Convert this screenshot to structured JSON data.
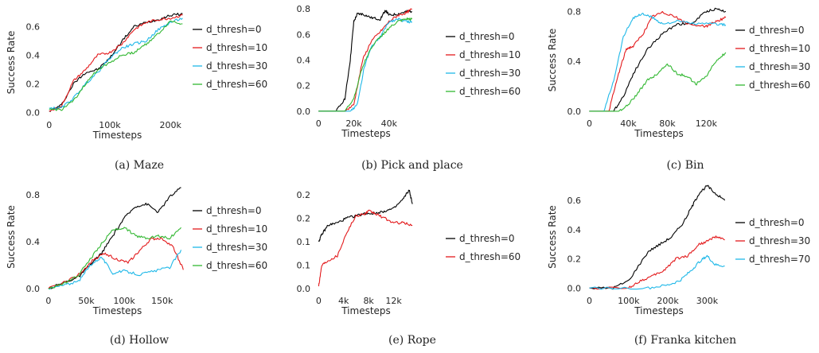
{
  "chart_data": [
    {
      "type": "line",
      "caption": "(a) Maze",
      "xlabel": "Timesteps",
      "ylabel": "Success Rate",
      "xlim": [
        -5000,
        230000
      ],
      "ylim": [
        -0.02,
        0.72
      ],
      "xticks": [
        0,
        100000,
        200000
      ],
      "xtick_labels": [
        "0",
        "100k",
        "200k"
      ],
      "yticks": [
        0.0,
        0.2,
        0.4,
        0.6
      ],
      "ytick_labels": [
        "0.0",
        "0.2",
        "0.4",
        "0.6"
      ],
      "grid": false,
      "legend_position": "right",
      "series": [
        {
          "name": "d_thresh=0",
          "color": "#000000",
          "x": [
            0,
            20000,
            40000,
            60000,
            80000,
            100000,
            120000,
            140000,
            160000,
            180000,
            200000,
            220000
          ],
          "y": [
            0.01,
            0.05,
            0.2,
            0.28,
            0.3,
            0.38,
            0.5,
            0.6,
            0.63,
            0.65,
            0.68,
            0.69
          ]
        },
        {
          "name": "d_thresh=10",
          "color": "#e31a1c",
          "x": [
            0,
            20000,
            40000,
            60000,
            80000,
            100000,
            120000,
            140000,
            160000,
            180000,
            200000,
            220000
          ],
          "y": [
            0.01,
            0.04,
            0.22,
            0.3,
            0.4,
            0.42,
            0.48,
            0.58,
            0.63,
            0.65,
            0.66,
            0.68
          ]
        },
        {
          "name": "d_thresh=30",
          "color": "#1fb8e8",
          "x": [
            0,
            20000,
            40000,
            60000,
            80000,
            100000,
            120000,
            140000,
            160000,
            180000,
            200000,
            220000
          ],
          "y": [
            0.03,
            0.03,
            0.1,
            0.2,
            0.28,
            0.38,
            0.45,
            0.48,
            0.5,
            0.58,
            0.63,
            0.66
          ]
        },
        {
          "name": "d_thresh=60",
          "color": "#33b833",
          "x": [
            0,
            20000,
            40000,
            60000,
            80000,
            100000,
            120000,
            140000,
            160000,
            180000,
            200000,
            220000
          ],
          "y": [
            0.02,
            0.02,
            0.08,
            0.2,
            0.3,
            0.35,
            0.4,
            0.42,
            0.48,
            0.55,
            0.64,
            0.62
          ]
        }
      ]
    },
    {
      "type": "line",
      "caption": "(b) Pick and place",
      "xlabel": "Timesteps",
      "ylabel": "",
      "xlim": [
        -1000,
        55000
      ],
      "ylim": [
        -0.02,
        0.82
      ],
      "xticks": [
        0,
        20000,
        40000
      ],
      "xtick_labels": [
        "0",
        "20k",
        "40k"
      ],
      "yticks": [
        0.0,
        0.2,
        0.4,
        0.6,
        0.8
      ],
      "ytick_labels": [
        "0.0",
        "0.2",
        "0.4",
        "0.6",
        "0.8"
      ],
      "grid": false,
      "legend_position": "right",
      "series": [
        {
          "name": "d_thresh=0",
          "color": "#000000",
          "x": [
            0,
            10000,
            15000,
            18000,
            20000,
            22000,
            25000,
            30000,
            35000,
            38000,
            40000,
            45000,
            50000,
            53000
          ],
          "y": [
            0.0,
            0.0,
            0.1,
            0.4,
            0.7,
            0.76,
            0.76,
            0.73,
            0.72,
            0.79,
            0.75,
            0.76,
            0.78,
            0.78
          ]
        },
        {
          "name": "d_thresh=10",
          "color": "#e31a1c",
          "x": [
            0,
            15000,
            20000,
            25000,
            30000,
            35000,
            40000,
            45000,
            50000,
            53000
          ],
          "y": [
            0.0,
            0.0,
            0.05,
            0.4,
            0.55,
            0.62,
            0.7,
            0.75,
            0.77,
            0.8
          ]
        },
        {
          "name": "d_thresh=30",
          "color": "#1fb8e8",
          "x": [
            0,
            18000,
            22000,
            26000,
            30000,
            35000,
            40000,
            45000,
            50000,
            53000
          ],
          "y": [
            0.0,
            0.0,
            0.05,
            0.35,
            0.5,
            0.58,
            0.7,
            0.72,
            0.7,
            0.7
          ]
        },
        {
          "name": "d_thresh=60",
          "color": "#33b833",
          "x": [
            0,
            15000,
            20000,
            25000,
            30000,
            35000,
            40000,
            45000,
            50000,
            53000
          ],
          "y": [
            0.0,
            0.0,
            0.1,
            0.35,
            0.5,
            0.58,
            0.65,
            0.7,
            0.72,
            0.72
          ]
        }
      ]
    },
    {
      "type": "line",
      "caption": "(c) Bin",
      "xlabel": "Timesteps",
      "ylabel": "Success Rate",
      "xlim": [
        -2000,
        145000
      ],
      "ylim": [
        -0.02,
        0.84
      ],
      "xticks": [
        0,
        40000,
        80000,
        120000
      ],
      "xtick_labels": [
        "0",
        "40k",
        "80k",
        "120k"
      ],
      "yticks": [
        0.0,
        0.4,
        0.8
      ],
      "ytick_labels": [
        "0.0",
        "0.4",
        "0.8"
      ],
      "grid": false,
      "legend_position": "right",
      "series": [
        {
          "name": "d_thresh=0",
          "color": "#000000",
          "x": [
            0,
            25000,
            35000,
            45000,
            60000,
            75000,
            90000,
            105000,
            120000,
            130000,
            140000
          ],
          "y": [
            0.0,
            0.0,
            0.12,
            0.3,
            0.5,
            0.62,
            0.7,
            0.7,
            0.8,
            0.82,
            0.8
          ]
        },
        {
          "name": "d_thresh=10",
          "color": "#e31a1c",
          "x": [
            0,
            20000,
            30000,
            38000,
            45000,
            55000,
            65000,
            75000,
            85000,
            100000,
            120000,
            130000,
            140000
          ],
          "y": [
            0.0,
            0.0,
            0.3,
            0.5,
            0.52,
            0.62,
            0.76,
            0.79,
            0.77,
            0.7,
            0.68,
            0.72,
            0.75
          ]
        },
        {
          "name": "d_thresh=30",
          "color": "#1fb8e8",
          "x": [
            0,
            15000,
            25000,
            35000,
            45000,
            55000,
            65000,
            75000,
            90000,
            110000,
            130000,
            140000
          ],
          "y": [
            0.0,
            0.0,
            0.25,
            0.6,
            0.75,
            0.78,
            0.75,
            0.7,
            0.72,
            0.7,
            0.7,
            0.69
          ]
        },
        {
          "name": "d_thresh=60",
          "color": "#33b833",
          "x": [
            0,
            30000,
            40000,
            50000,
            60000,
            70000,
            80000,
            90000,
            100000,
            110000,
            120000,
            130000,
            140000
          ],
          "y": [
            0.0,
            0.0,
            0.05,
            0.15,
            0.25,
            0.3,
            0.38,
            0.3,
            0.28,
            0.22,
            0.28,
            0.4,
            0.47
          ]
        }
      ]
    },
    {
      "type": "line",
      "caption": "(d) Hollow",
      "xlabel": "Timesteps",
      "ylabel": "Success Rate",
      "xlim": [
        -3000,
        185000
      ],
      "ylim": [
        -0.02,
        0.9
      ],
      "xticks": [
        0,
        50000,
        100000,
        150000
      ],
      "xtick_labels": [
        "0",
        "50k",
        "100k",
        "150k"
      ],
      "yticks": [
        0.0,
        0.4,
        0.8
      ],
      "ytick_labels": [
        "0.0",
        "0.4",
        "0.8"
      ],
      "grid": false,
      "legend_position": "right",
      "series": [
        {
          "name": "d_thresh=0",
          "color": "#000000",
          "x": [
            0,
            20000,
            40000,
            55000,
            70000,
            85000,
            100000,
            115000,
            130000,
            145000,
            160000,
            175000
          ],
          "y": [
            0.0,
            0.05,
            0.1,
            0.2,
            0.3,
            0.45,
            0.6,
            0.7,
            0.72,
            0.65,
            0.78,
            0.86
          ]
        },
        {
          "name": "d_thresh=10",
          "color": "#e31a1c",
          "x": [
            0,
            20000,
            40000,
            60000,
            75000,
            90000,
            105000,
            120000,
            135000,
            150000,
            165000,
            178000
          ],
          "y": [
            0.0,
            0.05,
            0.12,
            0.25,
            0.3,
            0.25,
            0.22,
            0.32,
            0.42,
            0.43,
            0.35,
            0.16
          ]
        },
        {
          "name": "d_thresh=30",
          "color": "#1fb8e8",
          "x": [
            0,
            20000,
            40000,
            55000,
            70000,
            85000,
            100000,
            120000,
            140000,
            160000,
            175000
          ],
          "y": [
            0.0,
            0.03,
            0.06,
            0.2,
            0.27,
            0.13,
            0.15,
            0.12,
            0.15,
            0.18,
            0.33
          ]
        },
        {
          "name": "d_thresh=60",
          "color": "#33b833",
          "x": [
            0,
            20000,
            40000,
            55000,
            70000,
            85000,
            100000,
            115000,
            130000,
            145000,
            160000,
            175000
          ],
          "y": [
            0.0,
            0.04,
            0.12,
            0.25,
            0.38,
            0.5,
            0.52,
            0.45,
            0.43,
            0.45,
            0.43,
            0.52
          ]
        }
      ]
    },
    {
      "type": "line",
      "caption": "(e) Rope",
      "xlabel": "Timesteps",
      "ylabel": "",
      "xlim": [
        -300,
        15500
      ],
      "ylim": [
        -0.005,
        0.225
      ],
      "xticks": [
        0,
        4000,
        8000,
        12000
      ],
      "xtick_labels": [
        "0",
        "4k",
        "8k",
        "12k"
      ],
      "yticks": [
        0.0,
        0.05,
        0.1,
        0.15,
        0.2
      ],
      "ytick_labels": [
        "0.0",
        "0.1",
        "0.1",
        "0.2",
        "0.2"
      ],
      "grid": false,
      "legend_position": "right",
      "series": [
        {
          "name": "d_thresh=0",
          "color": "#000000",
          "x": [
            0,
            500,
            1500,
            3000,
            4500,
            6000,
            7500,
            9000,
            10500,
            12000,
            13500,
            14500,
            15000
          ],
          "y": [
            0.1,
            0.115,
            0.135,
            0.14,
            0.15,
            0.155,
            0.16,
            0.16,
            0.165,
            0.17,
            0.19,
            0.21,
            0.18
          ]
        },
        {
          "name": "d_thresh=60",
          "color": "#e31a1c",
          "x": [
            0,
            500,
            1500,
            3000,
            4500,
            6000,
            7500,
            8000,
            9000,
            10500,
            12000,
            13500,
            15000
          ],
          "y": [
            0.005,
            0.05,
            0.06,
            0.07,
            0.12,
            0.155,
            0.16,
            0.165,
            0.16,
            0.15,
            0.14,
            0.14,
            0.135
          ]
        }
      ]
    },
    {
      "type": "line",
      "caption": "(f) Franka kitchen",
      "xlabel": "Timesteps",
      "ylabel": "Success Rate",
      "xlim": [
        -5000,
        360000
      ],
      "ylim": [
        -0.02,
        0.72
      ],
      "xticks": [
        0,
        100000,
        200000,
        300000
      ],
      "xtick_labels": [
        "0",
        "100k",
        "200k",
        "300k"
      ],
      "yticks": [
        0.0,
        0.2,
        0.4,
        0.6
      ],
      "ytick_labels": [
        "0.0",
        "0.2",
        "0.4",
        "0.6"
      ],
      "grid": false,
      "legend_position": "right",
      "series": [
        {
          "name": "d_thresh=0",
          "color": "#000000",
          "x": [
            0,
            60000,
            100000,
            150000,
            180000,
            210000,
            240000,
            260000,
            280000,
            300000,
            320000,
            345000
          ],
          "y": [
            0.0,
            0.0,
            0.05,
            0.25,
            0.3,
            0.35,
            0.45,
            0.55,
            0.65,
            0.7,
            0.65,
            0.6
          ]
        },
        {
          "name": "d_thresh=30",
          "color": "#e31a1c",
          "x": [
            0,
            100000,
            130000,
            160000,
            190000,
            220000,
            250000,
            280000,
            300000,
            320000,
            345000
          ],
          "y": [
            0.0,
            0.0,
            0.05,
            0.08,
            0.12,
            0.2,
            0.22,
            0.3,
            0.32,
            0.35,
            0.33
          ]
        },
        {
          "name": "d_thresh=70",
          "color": "#1fb8e8",
          "x": [
            0,
            150000,
            200000,
            230000,
            260000,
            280000,
            300000,
            320000,
            345000
          ],
          "y": [
            0.0,
            0.0,
            0.02,
            0.05,
            0.12,
            0.18,
            0.22,
            0.16,
            0.15
          ]
        }
      ]
    }
  ]
}
